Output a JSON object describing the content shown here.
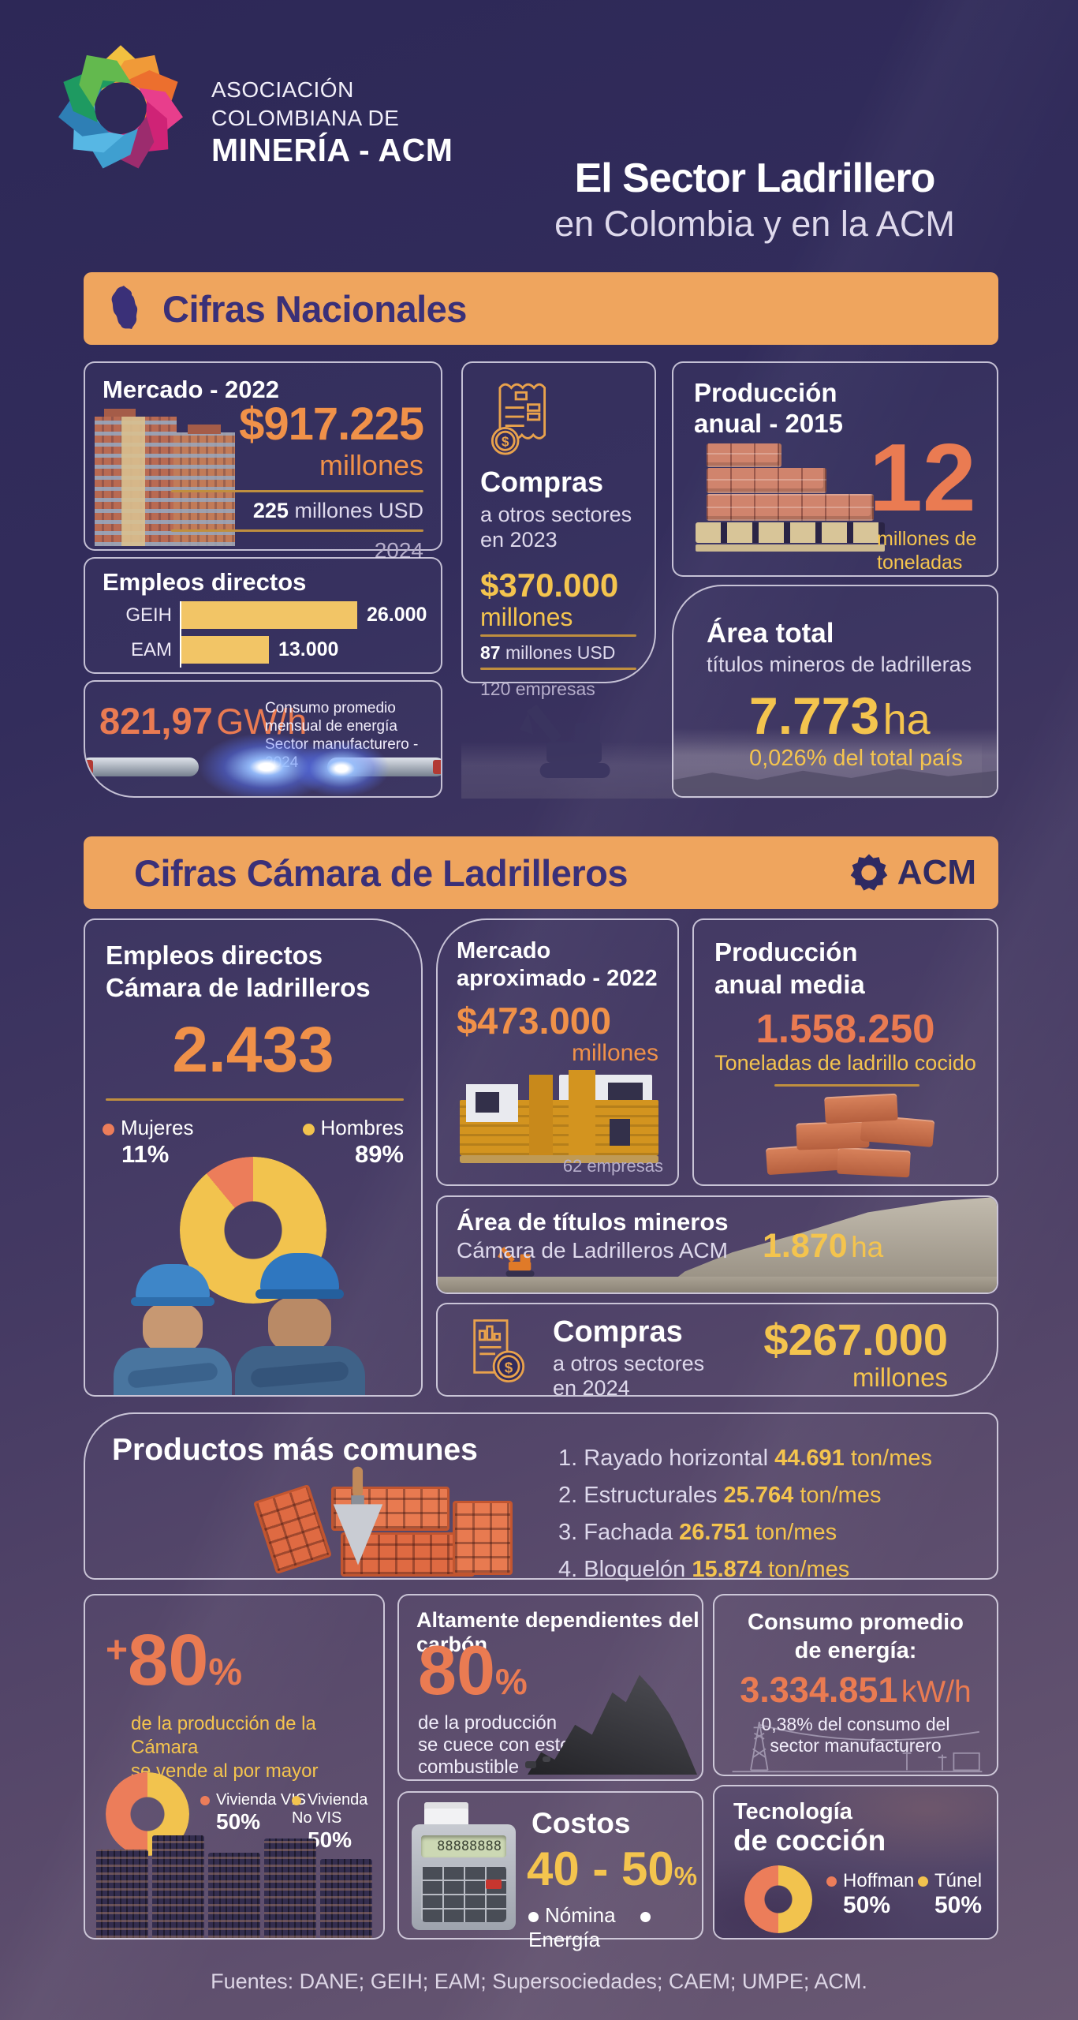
{
  "theme": {
    "background_top": "#2d2857",
    "background_bottom": "#6a5973",
    "banner_bg": "#efa55e",
    "banner_text": "#3a3078",
    "accent_orange": "#f09149",
    "accent_salmon": "#ea7b52",
    "accent_yellow": "#f4c44e",
    "gold_rule": "#c08f3f",
    "logo_palette": [
      "#f2c040",
      "#f09a38",
      "#ec6f2e",
      "#e83e8c",
      "#cf2376",
      "#9c2c6e",
      "#3f9fd0",
      "#57b7e4",
      "#2e7fb5",
      "#1e9a61",
      "#63b94e"
    ]
  },
  "header": {
    "logo_line1": "ASOCIACIÓN",
    "logo_line2": "COLOMBIANA DE",
    "logo_line3": "MINERÍA - ACM",
    "title_line1": "El Sector Ladrillero",
    "title_line2": "en Colombia y en la ACM"
  },
  "nac": {
    "banner": "Cifras Nacionales",
    "mercado": {
      "title": "Mercado - 2022",
      "value": "$917.225",
      "unit": "millones",
      "usd_value": "225",
      "usd_label": "millones USD",
      "year": "2024"
    },
    "empleos": {
      "title": "Empleos directos"
    },
    "energia": {
      "value": "821,97",
      "unit": "GW/h",
      "caption": [
        "Consumo promedio",
        "mensual de energía",
        "Sector manufacturero - 2024"
      ]
    },
    "compras": {
      "title": "Compras",
      "sub": [
        "a otros sectores",
        "en 2023"
      ],
      "value": "$370.000",
      "unit": "millones",
      "usd_value": "87",
      "usd_label": "millones USD",
      "companies": "120 empresas"
    },
    "produccion": {
      "title": [
        "Producción",
        "anual - 2015"
      ],
      "value": "12",
      "unit": [
        "millones de",
        "toneladas"
      ]
    },
    "area": {
      "title": "Área total",
      "sub": "títulos mineros de ladrilleras",
      "value": "7.773",
      "unit": "ha",
      "caption": "0,026% del total país"
    }
  },
  "cam": {
    "banner": "Cifras Cámara de Ladrilleros",
    "acm": "ACM",
    "empleos": {
      "title": [
        "Empleos directos",
        "Cámara de ladrilleros"
      ],
      "value": "2.433",
      "legend": [
        {
          "label": "Mujeres",
          "pct": "11%"
        },
        {
          "label": "Hombres",
          "pct": "89%"
        }
      ]
    },
    "mercado": {
      "title": [
        "Mercado",
        "aproximado - 2022"
      ],
      "value": "$473.000",
      "unit": "millones",
      "companies": "62 empresas"
    },
    "produccion": {
      "title": [
        "Producción",
        "anual media"
      ],
      "value": "1.558.250",
      "unit": "Toneladas de ladrillo cocido"
    },
    "area": {
      "title": "Área de títulos mineros",
      "sub": "Cámara de Ladrilleros ACM",
      "value": "1.870",
      "unit": "ha"
    },
    "compras": {
      "title": "Compras",
      "sub": [
        "a otros sectores",
        "en 2024"
      ],
      "value": "$267.000",
      "unit": "millones"
    }
  },
  "productos": {
    "title": "Productos más comunes",
    "items": [
      {
        "num": "1.",
        "name": "Rayado horizontal",
        "value": "44.691",
        "unit": "ton/mes"
      },
      {
        "num": "2.",
        "name": "Estructurales",
        "value": "25.764",
        "unit": "ton/mes"
      },
      {
        "num": "3.",
        "name": "Fachada",
        "value": "26.751",
        "unit": "ton/mes"
      },
      {
        "num": "4.",
        "name": "Bloquelón",
        "value": "15.874",
        "unit": "ton/mes"
      }
    ]
  },
  "bottom": {
    "mayorista": {
      "plus": "+",
      "value": "80",
      "pct": "%",
      "caption": [
        "de la producción de la Cámara",
        "se vende al por mayor"
      ],
      "legend": [
        {
          "label": "Vivienda VIS",
          "pct": "50%"
        },
        {
          "label": "Vivienda No VIS",
          "pct": "50%"
        }
      ]
    },
    "carbon": {
      "title": "Altamente dependientes del carbón",
      "value": "80",
      "pct": "%",
      "caption": [
        "de la producción",
        "se cuece con este",
        "combustible"
      ]
    },
    "costos": {
      "title": "Costos",
      "value": "40 - 50",
      "pct": "%",
      "legend": [
        "Nómina",
        "Energía"
      ],
      "display": "88888888"
    },
    "consumo": {
      "title": [
        "Consumo promedio",
        "de energía:"
      ],
      "value": "3.334.851",
      "unit": "kW/h",
      "caption": [
        "0,38% del consumo del",
        "sector manufacturero"
      ]
    },
    "coccion": {
      "title": [
        "Tecnología",
        "de cocción"
      ],
      "legend": [
        {
          "label": "Hoffman",
          "pct": "50%"
        },
        {
          "label": "Túnel",
          "pct": "50%"
        }
      ]
    }
  },
  "footer": "Fuentes: DANE; GEIH; EAM; Supersociedades; CAEM; UMPE; ACM.",
  "chart_data": [
    {
      "type": "bar",
      "title": "Empleos directos",
      "categories": [
        "GEIH",
        "EAM"
      ],
      "values": [
        26000,
        13000
      ],
      "display_values": [
        "26.000",
        "13.000"
      ],
      "bar_color": "#f2c566"
    },
    {
      "type": "pie",
      "title": "Empleos directos Cámara de ladrilleros",
      "labels": [
        "Mujeres",
        "Hombres"
      ],
      "values": [
        11,
        89
      ],
      "colors": [
        "#ec7d5a",
        "#f2c34e"
      ]
    },
    {
      "type": "pie",
      "title": "Destino de la producción vendida al por mayor",
      "labels": [
        "Vivienda VIS",
        "Vivienda No VIS"
      ],
      "values": [
        50,
        50
      ],
      "colors": [
        "#ec7d5a",
        "#f2c34e"
      ]
    },
    {
      "type": "pie",
      "title": "Tecnología de cocción",
      "labels": [
        "Hoffman",
        "Túnel"
      ],
      "values": [
        50,
        50
      ],
      "colors": [
        "#ec7d5a",
        "#f2c34e"
      ]
    }
  ]
}
